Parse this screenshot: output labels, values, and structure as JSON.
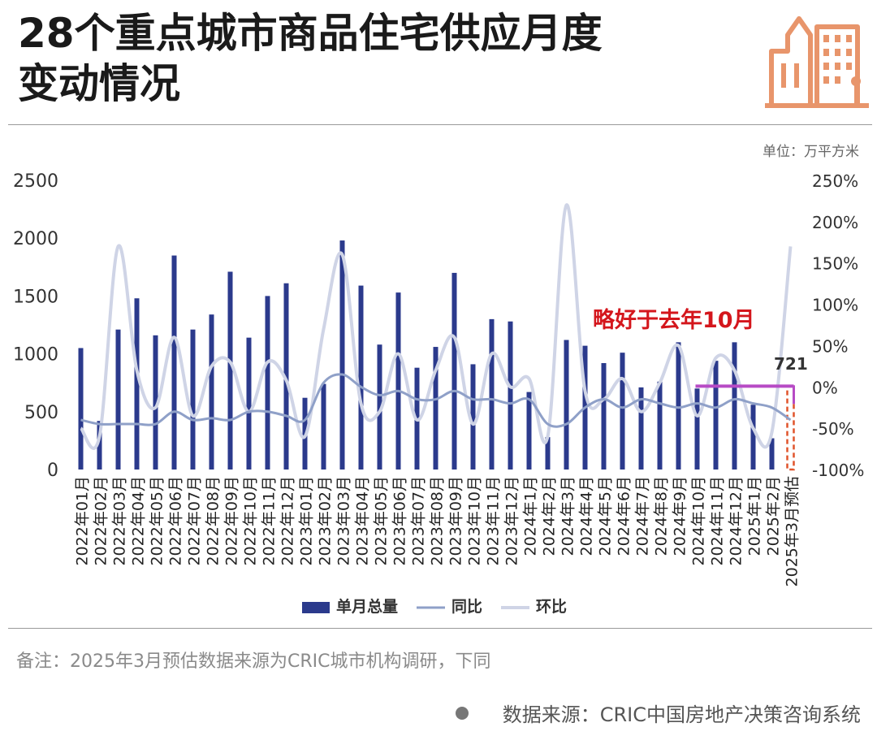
{
  "header": {
    "title_line1": "28个重点城市商品住宅供应月度",
    "title_line2": "变动情况",
    "logo_icon": "building-icon",
    "logo_color": "#e8956b"
  },
  "unit_label": "单位：万平方米",
  "annotation": {
    "text": "略好于去年10月",
    "color": "#d4161c",
    "forecast_value_label": "721"
  },
  "note": "备注：2025年3月预估数据来源为CRIC城市机构调研，下同",
  "source": "数据来源：CRIC中国房地产决策咨询系统",
  "colors": {
    "bar": "#2b3a8c",
    "yoy": "#8fa0c8",
    "mom": "#cfd4e6",
    "marker": "#b74bc5",
    "forecast": "#e0542b"
  },
  "chart_data": {
    "type": "bar",
    "categories": [
      "2022年01月",
      "2022年02月",
      "2022年03月",
      "2022年04月",
      "2022年05月",
      "2022年06月",
      "2022年07月",
      "2022年08月",
      "2022年09月",
      "2022年10月",
      "2022年11月",
      "2022年12月",
      "2023年01月",
      "2023年02月",
      "2023年03月",
      "2023年04月",
      "2023年05月",
      "2023年06月",
      "2023年07月",
      "2023年08月",
      "2023年09月",
      "2023年10月",
      "2023年11月",
      "2023年12月",
      "2024年1月",
      "2024年2月",
      "2024年3月",
      "2024年4月",
      "2024年5月",
      "2024年6月",
      "2024年7月",
      "2024年8月",
      "2024年9月",
      "2024年10月",
      "2024年11月",
      "2024年12月",
      "2025年1月",
      "2025年2月",
      "2025年3月预估"
    ],
    "series": [
      {
        "name": "单月总量",
        "type": "bar",
        "axis": "left",
        "values": [
          1050,
          420,
          1210,
          1480,
          1160,
          1850,
          1210,
          1340,
          1710,
          1140,
          1500,
          1610,
          620,
          740,
          1980,
          1590,
          1080,
          1530,
          880,
          1060,
          1700,
          910,
          1300,
          1280,
          670,
          280,
          1120,
          1070,
          920,
          1010,
          710,
          760,
          1100,
          700,
          940,
          1100,
          560,
          270,
          721
        ]
      },
      {
        "name": "同比",
        "type": "line",
        "axis": "right",
        "values": [
          -40,
          -45,
          -45,
          -45,
          -45,
          -30,
          -40,
          -38,
          -40,
          -30,
          -30,
          -35,
          -40,
          5,
          15,
          0,
          -10,
          -5,
          -15,
          -15,
          -5,
          -15,
          -15,
          -20,
          -15,
          -45,
          -45,
          -25,
          -15,
          -25,
          -15,
          -20,
          -25,
          -20,
          -25,
          -15,
          -20,
          -25,
          -40
        ]
      },
      {
        "name": "环比",
        "type": "line",
        "axis": "right",
        "values": [
          -50,
          -60,
          170,
          20,
          -25,
          60,
          -35,
          25,
          30,
          -30,
          30,
          8,
          -60,
          70,
          160,
          -20,
          -30,
          40,
          -40,
          20,
          60,
          -45,
          40,
          0,
          10,
          -60,
          220,
          -5,
          -15,
          10,
          -30,
          5,
          50,
          -35,
          35,
          20,
          -50,
          -55,
          170
        ]
      }
    ],
    "ylim_left": [
      0,
      2500
    ],
    "yticks_left": [
      "0",
      "500",
      "1000",
      "1500",
      "2000",
      "2500"
    ],
    "ylim_right": [
      -100,
      250
    ],
    "yticks_right": [
      "-100%",
      "-50%",
      "0%",
      "50%",
      "100%",
      "150%",
      "200%",
      "250%"
    ],
    "legend_position": "bottom",
    "grid": false
  }
}
